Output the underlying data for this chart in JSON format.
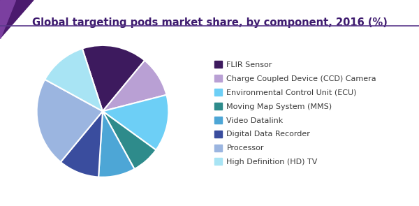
{
  "title": "Global targeting pods market share, by component, 2016 (%)",
  "title_color": "#3d1a6e",
  "title_fontsize": 10.5,
  "labels": [
    "FLIR Sensor",
    "Charge Coupled Device (CCD) Camera",
    "Environmental Control Unit (ECU)",
    "Moving Map System (MMS)",
    "Video Datalink",
    "Digital Data Recorder",
    "Processor",
    "High Definition (HD) TV"
  ],
  "sizes": [
    16,
    10,
    14,
    7,
    9,
    10,
    22,
    12
  ],
  "colors": [
    "#3d1a5e",
    "#b9a0d4",
    "#6dcff6",
    "#2e8b8b",
    "#4da6d6",
    "#3a4d9e",
    "#9bb5e0",
    "#a8e4f4"
  ],
  "legend_fontsize": 8.0,
  "background_color": "#ffffff",
  "header_line_color": "#5b3a8c",
  "triangle_dark": "#4b1a6e",
  "triangle_mid": "#7b3fa0",
  "startangle": 108
}
